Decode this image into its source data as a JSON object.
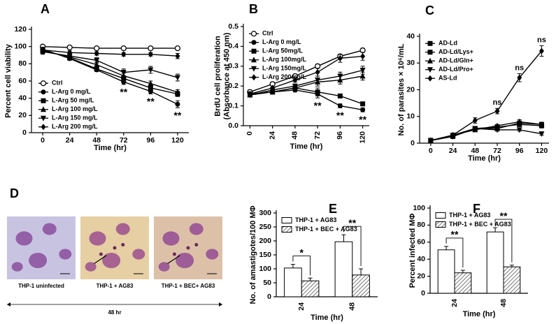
{
  "chart_data": [
    {
      "type": "line",
      "panel": "A",
      "xlabel": "Time (hr)",
      "ylabel": "Percent cell viability",
      "x": [
        0,
        24,
        48,
        72,
        96,
        120
      ],
      "xlim": [
        -10,
        130
      ],
      "ylim": [
        0,
        120
      ],
      "yticks": [
        0,
        20,
        40,
        60,
        80,
        100,
        120
      ],
      "rotate_xticks": false,
      "legend": "lower left",
      "series": [
        {
          "name": "Ctrl",
          "marker": "circle-open",
          "color": "#000000",
          "values": [
            100,
            99,
            98,
            98,
            98,
            98
          ],
          "errors": [
            1,
            1,
            1,
            1,
            1,
            1
          ]
        },
        {
          "name": "L-Arg 0 mg/L",
          "marker": "circle",
          "color": "#000000",
          "values": [
            97,
            86,
            73,
            59,
            48,
            33
          ],
          "errors": [
            2,
            2,
            2,
            3,
            3,
            4
          ]
        },
        {
          "name": "L-Arg 50 mg/L",
          "marker": "square",
          "color": "#000000",
          "values": [
            96,
            87,
            74,
            63,
            52,
            45
          ],
          "errors": [
            2,
            2,
            2,
            3,
            3,
            3
          ]
        },
        {
          "name": "L-Arg 100 mg/L",
          "marker": "triangle-up",
          "color": "#000000",
          "values": [
            95,
            88,
            79,
            66,
            57,
            47
          ],
          "errors": [
            3,
            2,
            3,
            3,
            3,
            3
          ]
        },
        {
          "name": "L-Arg 150 mg/L",
          "marker": "triangle-down",
          "color": "#000000",
          "values": [
            94,
            89,
            84,
            70,
            73,
            64
          ],
          "errors": [
            3,
            3,
            3,
            4,
            4,
            4
          ]
        },
        {
          "name": "L-Arg 200 mg/L",
          "marker": "diamond",
          "color": "#000000",
          "values": [
            96,
            93,
            92,
            91,
            91,
            89
          ],
          "errors": [
            2,
            2,
            2,
            2,
            2,
            3
          ]
        }
      ],
      "annotations": [
        {
          "x": 72,
          "text": "**",
          "position": "below"
        },
        {
          "x": 96,
          "text": "**",
          "position": "below"
        },
        {
          "x": 120,
          "text": "**",
          "position": "below"
        }
      ]
    },
    {
      "type": "line",
      "panel": "B",
      "xlabel": "Time (hr)",
      "ylabel": [
        "BrdU cell proliferation",
        "(Absorbance at 450 nm)"
      ],
      "x": [
        0,
        24,
        48,
        72,
        96,
        120
      ],
      "xlim": [
        -7,
        127
      ],
      "ylim": [
        0,
        0.5
      ],
      "yticks": [
        {
          "value": 0,
          "label": "0.0"
        },
        0.1,
        0.2,
        0.3,
        0.4,
        0.5
      ],
      "rotate_xticks": true,
      "legend": "upper left",
      "series": [
        {
          "name": "Ctrl",
          "marker": "circle-open",
          "color": "#000000",
          "values": [
            0.17,
            0.21,
            0.25,
            0.3,
            0.35,
            0.38
          ],
          "errors": [
            0.01,
            0.01,
            0.01,
            0.01,
            0.01,
            0.01
          ]
        },
        {
          "name": "L-Arg 0 mg/L",
          "marker": "circle",
          "color": "#000000",
          "values": [
            0.16,
            0.17,
            0.18,
            0.16,
            0.1,
            0.08
          ],
          "errors": [
            0.01,
            0.01,
            0.01,
            0.02,
            0.01,
            0.01
          ]
        },
        {
          "name": "L-Arg 50mg/L",
          "marker": "square",
          "color": "#000000",
          "values": [
            0.16,
            0.17,
            0.19,
            0.17,
            0.15,
            0.11
          ],
          "errors": [
            0.01,
            0.01,
            0.01,
            0.02,
            0.01,
            0.01
          ]
        },
        {
          "name": "L-Arg 100mg/L",
          "marker": "triangle-up",
          "color": "#000000",
          "values": [
            0.155,
            0.17,
            0.19,
            0.22,
            0.23,
            0.25
          ],
          "errors": [
            0.01,
            0.01,
            0.01,
            0.02,
            0.02,
            0.02
          ]
        },
        {
          "name": "L-Arg 150mg/L",
          "marker": "triangle-down",
          "color": "#000000",
          "values": [
            0.155,
            0.18,
            0.2,
            0.23,
            0.25,
            0.28
          ],
          "errors": [
            0.01,
            0.01,
            0.01,
            0.02,
            0.02,
            0.02
          ]
        },
        {
          "name": "L-Arg 200mg/L",
          "marker": "diamond",
          "color": "#000000",
          "values": [
            0.16,
            0.19,
            0.23,
            0.27,
            0.34,
            0.35
          ],
          "errors": [
            0.01,
            0.01,
            0.01,
            0.02,
            0.02,
            0.02
          ]
        }
      ],
      "annotations": [
        {
          "x": 72,
          "text": "**",
          "position": "below"
        },
        {
          "x": 96,
          "text": "**",
          "position": "below"
        },
        {
          "x": 120,
          "text": "**",
          "position": "below"
        }
      ]
    },
    {
      "type": "line",
      "panel": "C",
      "xlabel": "Time (hr)",
      "ylabel": "No. of parasites × 10⁶/mL",
      "x": [
        0,
        24,
        48,
        72,
        96,
        120
      ],
      "xlim": [
        -12,
        128
      ],
      "ylim": [
        0,
        40
      ],
      "yticks": [
        0,
        10,
        20,
        30,
        40
      ],
      "rotate_xticks": false,
      "legend": "upper left",
      "series": [
        {
          "name": "AD-Ld",
          "marker": "square",
          "color": "#000000",
          "values": [
            1,
            3,
            5.5,
            5.5,
            7.5,
            7
          ],
          "errors": [
            0.5,
            0.5,
            0.5,
            0.5,
            0.8,
            0.8
          ]
        },
        {
          "name": "AD-Ld/Lys+",
          "marker": "square",
          "color": "#000000",
          "values": [
            1,
            2.5,
            5.5,
            6,
            7,
            6.5
          ],
          "errors": [
            0.5,
            0.5,
            0.5,
            0.5,
            0.8,
            0.8
          ]
        },
        {
          "name": "AD-Ld/Gln+",
          "marker": "triangle-up",
          "color": "#000000",
          "values": [
            1,
            3,
            5,
            6.5,
            8,
            7
          ],
          "errors": [
            0.5,
            0.5,
            0.5,
            0.5,
            0.8,
            0.8
          ]
        },
        {
          "name": "AD-Ld/Pro+",
          "marker": "triangle-down",
          "color": "#000000",
          "values": [
            1,
            2.5,
            5.5,
            5,
            5,
            3.5
          ],
          "errors": [
            0.5,
            0.5,
            0.5,
            0.5,
            0.5,
            0.5
          ]
        },
        {
          "name": "AS-Ld",
          "marker": "diamond",
          "color": "#000000",
          "values": [
            1,
            3,
            8.5,
            12,
            24.5,
            34.5
          ],
          "errors": [
            0.3,
            0.5,
            1,
            1,
            1.5,
            2
          ]
        }
      ],
      "annotations": [
        {
          "x": 72,
          "text": "ns",
          "position": "above"
        },
        {
          "x": 96,
          "text": "ns",
          "position": "above"
        },
        {
          "x": 120,
          "text": "ns",
          "position": "above"
        }
      ]
    },
    {
      "type": "image",
      "panel": "D",
      "captions": [
        "THP-1 uninfected",
        "THP-1 + AG83",
        "THP-1 + BEC+ AG83"
      ],
      "footer": "48 hr"
    },
    {
      "type": "bar",
      "panel": "E",
      "xlabel": "Time (hr)",
      "ylabel": "No. of amastigotes/100 MΦ",
      "categories": [
        "24",
        "48"
      ],
      "ylim": [
        0,
        300
      ],
      "yticks": [
        0,
        50,
        100,
        150,
        200,
        250,
        300
      ],
      "rotate_xticks": true,
      "legend": "upper left",
      "series": [
        {
          "name": "THP-1 + AG83",
          "color": "#ffffff",
          "hatch": false,
          "values": [
            103,
            197
          ],
          "errors": [
            13,
            25
          ]
        },
        {
          "name": "THP-1 + BEC + AG83",
          "color": "#555555",
          "hatch": true,
          "values": [
            57,
            78
          ],
          "errors": [
            10,
            22
          ]
        }
      ],
      "annotations": [
        {
          "category": 0,
          "text": "*"
        },
        {
          "category": 1,
          "text": "**"
        }
      ]
    },
    {
      "type": "bar",
      "panel": "F",
      "xlabel": "Time (hr)",
      "ylabel": "Percent infected MΦ",
      "categories": [
        "24",
        "48"
      ],
      "ylim": [
        0,
        100
      ],
      "yticks": [
        0,
        20,
        40,
        60,
        80,
        100
      ],
      "rotate_xticks": true,
      "legend": "upper left",
      "series": [
        {
          "name": "THP-1 + AG83",
          "color": "#ffffff",
          "hatch": false,
          "values": [
            51,
            72
          ],
          "errors": [
            4,
            5
          ]
        },
        {
          "name": "THP-1 + BEC + AG83",
          "color": "#555555",
          "hatch": true,
          "values": [
            24,
            31
          ],
          "errors": [
            3,
            2
          ]
        }
      ],
      "annotations": [
        {
          "category": 0,
          "text": "**"
        },
        {
          "category": 1,
          "text": "**"
        }
      ]
    }
  ]
}
